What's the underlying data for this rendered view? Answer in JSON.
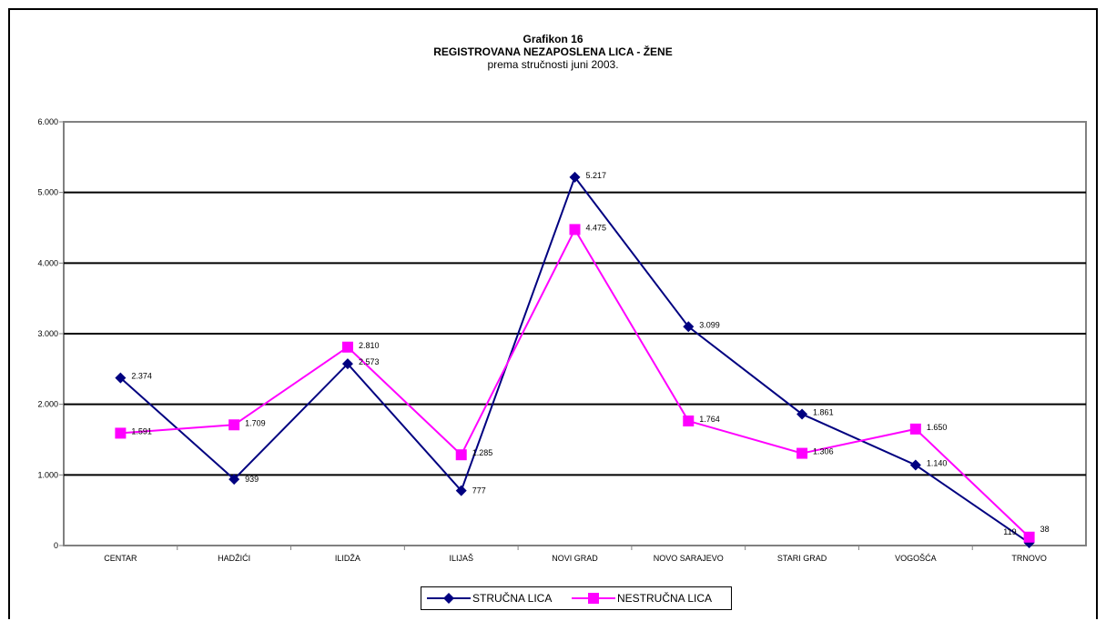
{
  "chart_data": {
    "type": "line",
    "title": "Grafikon 16",
    "subtitle": "REGISTROVANA NEZAPOSLENA LICA - ŽENE",
    "subtitle2": "prema stručnosti juni 2003.",
    "categories": [
      "CENTAR",
      "HADŽIĆI",
      "ILIDŽA",
      "ILIJAŠ",
      "NOVI GRAD",
      "NOVO SARAJEVO",
      "STARI GRAD",
      "VOGOŠĆA",
      "TRNOVO"
    ],
    "series": [
      {
        "name": "STRUČNA LICA",
        "color": "#000080",
        "marker": "diamond",
        "values": [
          2374,
          939,
          2573,
          777,
          5217,
          3099,
          1861,
          1140,
          38
        ],
        "labels": [
          "2.374",
          "939",
          "2.573",
          "777",
          "5.217",
          "3.099",
          "1.861",
          "1.140",
          "38"
        ]
      },
      {
        "name": "NESTRUČNA LICA",
        "color": "#ff00ff",
        "marker": "square",
        "values": [
          1591,
          1709,
          2810,
          1285,
          4475,
          1764,
          1306,
          1650,
          119
        ],
        "labels": [
          "1.591",
          "1.709",
          "2.810",
          "1.285",
          "4.475",
          "1.764",
          "1.306",
          "1.650",
          "119"
        ]
      }
    ],
    "yticks": [
      "0",
      "1.000",
      "2.000",
      "3.000",
      "4.000",
      "5.000",
      "6.000"
    ],
    "ylim": [
      0,
      6000
    ],
    "grid": true,
    "legend_position": "bottom"
  }
}
